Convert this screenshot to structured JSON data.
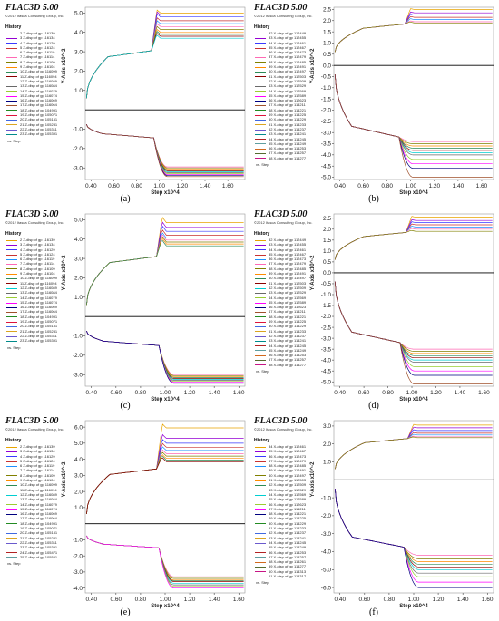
{
  "captions": [
    "(a)",
    "(b)",
    "(c)",
    "(d)",
    "(e)",
    "(f)"
  ],
  "chart_data": [
    {
      "type": "line",
      "header": {
        "title": "FLAC3D 5.00",
        "copyright": "©2012 Itasca Consulting Group, Inc."
      },
      "legend_title": "History",
      "legend": [
        "2 Z-disp of gp 116139",
        "3 Z-disp of gp 116134",
        "4 Z-disp of gp 116129",
        "5 Z-disp of gp 116124",
        "6 Z-disp of gp 116119",
        "7 Z-disp of gp 116114",
        "8 Z-disp of gp 116109",
        "9 Z-disp of gp 116104",
        "10 Z-disp of gp 116099",
        "11 Z-disp of gp 116094",
        "12 Z-disp of gp 116089",
        "13 Z-disp of gp 116084",
        "14 Z-disp of gp 116079",
        "15 Z-disp of gp 116074",
        "16 Z-disp of gp 116069",
        "17 Z-disp of gp 116064",
        "18 Z-disp of gp 104991",
        "19 Z-disp of gp 105071",
        "20 Z-disp of gp 105151",
        "21 Z-disp of gp 105231",
        "22 Z-disp of gp 105311",
        "23 Z-disp of gp 105391"
      ],
      "vs": "vs. Step",
      "xlabel": "Step x10^4",
      "ylabel": "Y-Axis x10^-2",
      "xlim": [
        0.35,
        1.75
      ],
      "xticks": [
        0.4,
        0.6,
        0.8,
        1.0,
        1.2,
        1.4,
        1.6
      ],
      "ylim": [
        -3.6,
        5.3
      ],
      "yticks": [
        -3.0,
        -2.0,
        -1.0,
        1.0,
        2.0,
        3.0,
        4.0,
        5.0
      ],
      "zero_line": true,
      "up": {
        "rise_end": 0.55,
        "plateau": 3.05,
        "step_x": 0.93,
        "finals": [
          5.0,
          4.9,
          4.8,
          4.6,
          4.45,
          4.3,
          4.15,
          4.0,
          3.9,
          3.8,
          3.7
        ],
        "peak_extra": 0.2
      },
      "down": {
        "start": -0.75,
        "plateau": -1.45,
        "step_x": 0.95,
        "finals": [
          -2.95,
          -3.0,
          -3.05,
          -3.1,
          -3.15,
          -3.2,
          -3.25,
          -3.3,
          -3.35,
          -3.4,
          -3.45
        ],
        "dip_extra": 0.1
      }
    },
    {
      "type": "line",
      "header": {
        "title": "FLAC3D 5.00",
        "copyright": "©2012 Itasca Consulting Group, Inc."
      },
      "legend_title": "History",
      "legend": [
        "32 X-disp of gp 112449",
        "33 X-disp of gp 112455",
        "34 X-disp of gp 112461",
        "35 X-disp of gp 112467",
        "36 X-disp of gp 112473",
        "37 X-disp of gp 112479",
        "38 X-disp of gp 112485",
        "39 X-disp of gp 112491",
        "40 X-disp of gp 112497",
        "41 X-disp of gp 112503",
        "42 X-disp of gp 112509",
        "43 X-disp of gp 112529",
        "44 X-disp of gp 112569",
        "45 X-disp of gp 112589",
        "46 X-disp of gp 112623",
        "47 X-disp of gp 114211",
        "48 X-disp of gp 114221",
        "49 X-disp of gp 114225",
        "50 X-disp of gp 114229",
        "51 X-disp of gp 114233",
        "52 X-disp of gp 114237",
        "53 X-disp of gp 114241",
        "54 X-disp of gp 114245",
        "55 X-disp of gp 114249",
        "56 X-disp of gp 114253",
        "57 X-disp of gp 114257",
        "58 X-disp of gp 114277"
      ],
      "vs": "vs. Step",
      "xlabel": "Step x10^4",
      "ylabel": "Y-Axis x10^-2",
      "xlim": [
        0.35,
        1.7
      ],
      "xticks": [
        0.4,
        0.6,
        0.8,
        1.0,
        1.2,
        1.4,
        1.6
      ],
      "ylim": [
        -5.1,
        2.6
      ],
      "yticks": [
        -5.0,
        -4.5,
        -4.0,
        -3.5,
        -3.0,
        -2.5,
        -2.0,
        -1.5,
        -1.0,
        -0.5,
        0.0,
        0.5,
        1.0,
        1.5,
        2.0,
        2.5
      ],
      "zero_line": true,
      "up": {
        "rise_end": 0.6,
        "plateau": 1.85,
        "step_x": 0.95,
        "finals": [
          2.5,
          2.35,
          2.25,
          2.15,
          2.05,
          1.95,
          1.9
        ],
        "peak_extra": 0.05
      },
      "down": {
        "start": -0.4,
        "plateau": -3.2,
        "step_x": 0.9,
        "finals": [
          -3.4,
          -3.5,
          -3.6,
          -3.7,
          -3.8,
          -3.9,
          -4.0,
          -4.2,
          -4.4,
          -4.6,
          -5.0
        ],
        "dip_extra": 0.0
      }
    },
    {
      "type": "line",
      "header": {
        "title": "FLAC3D 5.00",
        "copyright": "©2012 Itasca Consulting Group, Inc."
      },
      "legend_title": "History",
      "legend": [
        "2 Z-disp of gp 116139",
        "3 Z-disp of gp 116134",
        "4 Z-disp of gp 116129",
        "5 Z-disp of gp 116124",
        "6 Z-disp of gp 116119",
        "7 Z-disp of gp 116114",
        "8 Z-disp of gp 116109",
        "9 Z-disp of gp 116104",
        "10 Z-disp of gp 116099",
        "11 Z-disp of gp 116094",
        "12 Z-disp of gp 116089",
        "13 Z-disp of gp 116084",
        "14 Z-disp of gp 116079",
        "15 Z-disp of gp 116074",
        "16 Z-disp of gp 116069",
        "17 Z-disp of gp 116064",
        "18 Z-disp of gp 104991",
        "19 Z-disp of gp 105071",
        "20 Z-disp of gp 105151",
        "21 Z-disp of gp 105231",
        "22 Z-disp of gp 105311",
        "23 Z-disp of gp 105391"
      ],
      "vs": "vs. Step",
      "xlabel": "Step x10^4",
      "ylabel": "Y-Axis x10^-2",
      "xlim": [
        0.35,
        1.65
      ],
      "xticks": [
        0.4,
        0.6,
        0.8,
        1.0,
        1.2,
        1.4,
        1.6
      ],
      "ylim": [
        -3.6,
        5.3
      ],
      "yticks": [
        -3.0,
        -2.0,
        -1.0,
        1.0,
        2.0,
        3.0,
        4.0,
        5.0
      ],
      "zero_line": true,
      "up": {
        "rise_end": 0.55,
        "plateau": 3.1,
        "step_x": 0.93,
        "finals": [
          4.85,
          4.6,
          4.4,
          4.2,
          4.05,
          3.95,
          3.85,
          3.75,
          3.65
        ],
        "peak_extra": 0.35
      },
      "down": {
        "start": -0.75,
        "plateau": -1.5,
        "step_x": 0.95,
        "finals": [
          -3.0,
          -3.05,
          -3.1,
          -3.15,
          -3.2,
          -3.25,
          -3.3,
          -3.35,
          -3.4,
          -3.45
        ],
        "dip_extra": 0.1
      }
    },
    {
      "type": "line",
      "header": {
        "title": "FLAC3D 5.00",
        "copyright": "©2012 Itasca Consulting Group, Inc."
      },
      "legend_title": "History",
      "legend": [
        "32 X-disp of gp 112449",
        "33 X-disp of gp 112455",
        "34 X-disp of gp 112461",
        "35 X-disp of gp 112467",
        "36 X-disp of gp 112473",
        "37 X-disp of gp 112479",
        "38 X-disp of gp 112485",
        "39 X-disp of gp 112491",
        "40 X-disp of gp 112497",
        "41 X-disp of gp 112503",
        "42 X-disp of gp 112509",
        "43 X-disp of gp 112529",
        "44 X-disp of gp 112569",
        "45 X-disp of gp 112589",
        "46 X-disp of gp 112623",
        "47 X-disp of gp 114211",
        "48 X-disp of gp 114221",
        "49 X-disp of gp 114225",
        "50 X-disp of gp 114229",
        "51 X-disp of gp 114233",
        "52 X-disp of gp 114237",
        "53 X-disp of gp 114241",
        "54 X-disp of gp 114245",
        "55 X-disp of gp 114249",
        "56 X-disp of gp 114253",
        "57 X-disp of gp 114257",
        "58 X-disp of gp 114277"
      ],
      "vs": "vs. Step",
      "xlabel": "Step x10^4",
      "ylabel": "Y-Axis x10^-2",
      "xlim": [
        0.35,
        1.68
      ],
      "xticks": [
        0.4,
        0.6,
        0.8,
        1.0,
        1.2,
        1.4,
        1.6
      ],
      "ylim": [
        -5.2,
        2.7
      ],
      "yticks": [
        -5.0,
        -4.5,
        -4.0,
        -3.5,
        -3.0,
        -2.5,
        -2.0,
        -1.5,
        -1.0,
        -0.5,
        0.0,
        0.5,
        1.0,
        1.5,
        2.0,
        2.5
      ],
      "zero_line": true,
      "up": {
        "rise_end": 0.6,
        "plateau": 1.85,
        "step_x": 0.95,
        "finals": [
          2.55,
          2.4,
          2.3,
          2.2,
          2.1,
          2.0,
          1.9
        ],
        "peak_extra": 0.05
      },
      "down": {
        "start": -0.4,
        "plateau": -3.2,
        "step_x": 0.9,
        "finals": [
          -3.5,
          -3.6,
          -3.7,
          -3.8,
          -3.9,
          -4.0,
          -4.1,
          -4.3,
          -4.5,
          -4.7,
          -5.1
        ],
        "dip_extra": 0.0
      }
    },
    {
      "type": "line",
      "header": {
        "title": "FLAC3D 5.00",
        "copyright": "©2012 Itasca Consulting Group, Inc."
      },
      "legend_title": "History",
      "legend": [
        "2 Z-disp of gp 116139",
        "3 Z-disp of gp 116134",
        "4 Z-disp of gp 116129",
        "5 Z-disp of gp 116124",
        "6 Z-disp of gp 116119",
        "7 Z-disp of gp 116114",
        "8 Z-disp of gp 116109",
        "9 Z-disp of gp 116104",
        "10 Z-disp of gp 116099",
        "11 Z-disp of gp 116094",
        "12 Z-disp of gp 116089",
        "13 Z-disp of gp 116084",
        "14 Z-disp of gp 116079",
        "15 Z-disp of gp 116074",
        "16 Z-disp of gp 116069",
        "17 Z-disp of gp 116064",
        "18 Z-disp of gp 104991",
        "19 Z-disp of gp 105071",
        "20 Z-disp of gp 105151",
        "21 Z-disp of gp 105231",
        "22 Z-disp of gp 105311",
        "23 Z-disp of gp 105391",
        "24 Z-disp of gp 105471",
        "25 Z-disp of gp 105551"
      ],
      "vs": "vs. Step",
      "xlabel": "Step x10^4",
      "ylabel": "Y-Axis x10^-2",
      "xlim": [
        0.35,
        1.65
      ],
      "xticks": [
        0.4,
        0.6,
        0.8,
        1.0,
        1.2,
        1.4,
        1.6
      ],
      "ylim": [
        -4.3,
        6.4
      ],
      "yticks": [
        -4.0,
        -3.0,
        -2.0,
        -1.0,
        1.0,
        2.0,
        3.0,
        4.0,
        5.0,
        6.0
      ],
      "zero_line": true,
      "up": {
        "rise_end": 0.55,
        "plateau": 3.4,
        "step_x": 0.93,
        "finals": [
          5.95,
          5.3,
          5.0,
          4.75,
          4.55,
          4.35,
          4.2,
          4.05,
          3.95,
          3.85
        ],
        "peak_extra": 0.3
      },
      "down": {
        "start": -0.75,
        "plateau": -1.5,
        "step_x": 0.95,
        "finals": [
          -3.3,
          -3.4,
          -3.5,
          -3.55,
          -3.6,
          -3.7,
          -3.8,
          -3.9,
          -4.0
        ],
        "dip_extra": 0.1
      }
    },
    {
      "type": "line",
      "header": {
        "title": "FLAC3D 5.00",
        "copyright": "©2012 Itasca Consulting Group, Inc."
      },
      "legend_title": "History",
      "legend": [
        "34 X-disp of gp 112461",
        "35 X-disp of gp 112467",
        "36 X-disp of gp 112473",
        "37 X-disp of gp 112479",
        "38 X-disp of gp 112485",
        "39 X-disp of gp 112491",
        "40 X-disp of gp 112497",
        "41 X-disp of gp 112503",
        "42 X-disp of gp 112509",
        "43 X-disp of gp 112529",
        "44 X-disp of gp 112569",
        "45 X-disp of gp 112589",
        "46 X-disp of gp 112623",
        "47 X-disp of gp 114211",
        "48 X-disp of gp 114221",
        "49 X-disp of gp 114225",
        "50 X-disp of gp 114229",
        "51 X-disp of gp 114233",
        "52 X-disp of gp 114237",
        "53 X-disp of gp 114241",
        "54 X-disp of gp 114245",
        "55 X-disp of gp 114249",
        "56 X-disp of gp 114253",
        "57 X-disp of gp 114257",
        "58 X-disp of gp 114261",
        "59 X-disp of gp 114277",
        "60 X-disp of gp 114313",
        "61 X-disp of gp 114317"
      ],
      "vs": "vs. Step",
      "xlabel": "Step x10^4",
      "ylabel": "Y-Axis x10^-2",
      "xlim": [
        0.35,
        1.65
      ],
      "xticks": [
        0.4,
        0.6,
        0.8,
        1.0,
        1.2,
        1.4,
        1.6
      ],
      "ylim": [
        -6.3,
        3.3
      ],
      "yticks": [
        -6.0,
        -5.0,
        -4.0,
        -3.0,
        -2.0,
        -1.0,
        1.0,
        2.0,
        3.0
      ],
      "zero_line": true,
      "up": {
        "rise_end": 0.6,
        "plateau": 2.3,
        "step_x": 0.95,
        "finals": [
          3.05,
          2.9,
          2.75,
          2.6,
          2.5,
          2.4,
          2.35
        ],
        "peak_extra": 0.05
      },
      "down": {
        "start": -0.5,
        "plateau": -3.75,
        "step_x": 0.92,
        "finals": [
          -4.2,
          -4.4,
          -4.55,
          -4.7,
          -4.85,
          -5.0,
          -5.2,
          -5.4,
          -5.7,
          -6.0
        ],
        "dip_extra": 0.0
      }
    }
  ],
  "palette": [
    "#e8a400",
    "#9400d3",
    "#3a3aff",
    "#c83232",
    "#1e90ff",
    "#ff69b4",
    "#808000",
    "#ff8c00",
    "#2e8b57",
    "#8b0000",
    "#00ced1",
    "#696969",
    "#9acd32",
    "#ff00ff",
    "#000080",
    "#a0522d",
    "#228b22",
    "#dc143c",
    "#4169e1",
    "#daa520",
    "#6a5acd",
    "#008b8b",
    "#b22222",
    "#5f9ea0",
    "#d2691e",
    "#556b2f",
    "#c71585",
    "#00bfff"
  ]
}
